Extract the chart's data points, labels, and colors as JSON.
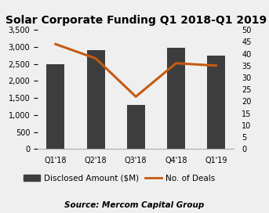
{
  "title": "Solar Corporate Funding Q1 2018-Q1 2019",
  "categories": [
    "Q1'18",
    "Q2'18",
    "Q3'18",
    "Q4'18",
    "Q1'19"
  ],
  "bar_values": [
    2500,
    2900,
    1300,
    2975,
    2750
  ],
  "line_values": [
    44,
    38,
    22,
    36,
    35
  ],
  "bar_color": "#3d3d3d",
  "line_color": "#c55a11",
  "bar_label": "Disclosed Amount ($M)",
  "line_label": "No. of Deals",
  "ylim_left": [
    0,
    3500
  ],
  "ylim_right": [
    0,
    50
  ],
  "yticks_left": [
    0,
    500,
    1000,
    1500,
    2000,
    2500,
    3000,
    3500
  ],
  "yticks_right": [
    0,
    5,
    10,
    15,
    20,
    25,
    30,
    35,
    40,
    45,
    50
  ],
  "source_text": "Source: Mercom Capital Group",
  "background_color": "#efefef",
  "title_fontsize": 10,
  "tick_fontsize": 7,
  "legend_fontsize": 7.5,
  "source_fontsize": 7.5,
  "bar_width": 0.45
}
